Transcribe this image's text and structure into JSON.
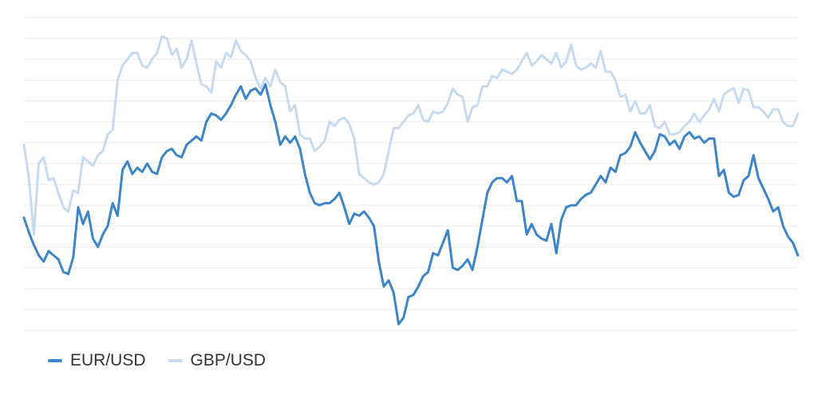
{
  "chart_data": {
    "type": "line",
    "title": "",
    "xlabel": "",
    "ylabel": "",
    "grid": true,
    "legend_position": "bottom-left",
    "ylim": [
      0,
      15
    ],
    "series": [
      {
        "name": "EUR/USD",
        "color": "#3d85c6",
        "values": [
          5.4,
          4.7,
          4.1,
          3.6,
          3.3,
          3.8,
          3.6,
          3.4,
          2.8,
          2.7,
          3.5,
          5.9,
          5.1,
          5.7,
          4.4,
          4.0,
          4.6,
          5.0,
          6.1,
          5.5,
          7.7,
          8.1,
          7.5,
          7.8,
          7.6,
          8.0,
          7.6,
          7.5,
          8.3,
          8.6,
          8.7,
          8.4,
          8.3,
          8.9,
          9.1,
          9.3,
          9.1,
          10.0,
          10.4,
          10.3,
          10.1,
          10.4,
          10.8,
          11.3,
          11.7,
          11.1,
          11.5,
          11.6,
          11.3,
          11.8,
          10.8,
          10.0,
          8.9,
          9.3,
          9.0,
          9.3,
          8.7,
          7.5,
          6.6,
          6.1,
          6.0,
          6.1,
          6.1,
          6.3,
          6.6,
          5.9,
          5.1,
          5.6,
          5.5,
          5.7,
          5.4,
          5.0,
          3.3,
          2.1,
          2.4,
          1.8,
          0.3,
          0.6,
          1.6,
          1.7,
          2.1,
          2.6,
          2.8,
          3.7,
          3.6,
          4.2,
          4.8,
          3.0,
          2.9,
          3.1,
          3.4,
          2.9,
          4.0,
          5.3,
          6.6,
          7.1,
          7.3,
          7.3,
          7.1,
          7.4,
          6.2,
          6.2,
          4.6,
          5.1,
          4.6,
          4.4,
          4.3,
          5.1,
          3.7,
          5.3,
          5.9,
          6.0,
          6.0,
          6.3,
          6.5,
          6.6,
          7.0,
          7.4,
          7.1,
          7.8,
          7.6,
          8.4,
          8.5,
          8.8,
          9.5,
          9.0,
          8.6,
          8.2,
          8.6,
          9.4,
          9.3,
          8.9,
          9.1,
          8.7,
          9.3,
          9.5,
          9.2,
          9.3,
          9.0,
          9.2,
          9.2,
          7.4,
          7.7,
          6.6,
          6.4,
          6.5,
          7.2,
          7.4,
          8.4,
          7.3,
          6.8,
          6.3,
          5.7,
          5.9,
          5.0,
          4.5,
          4.2,
          3.6
        ],
        "xlabel": ""
      },
      {
        "name": "GBP/USD",
        "color": "#c6dbef",
        "values": [
          8.9,
          7.3,
          4.6,
          8.0,
          8.3,
          7.2,
          7.3,
          6.6,
          5.9,
          5.7,
          6.7,
          6.6,
          8.3,
          8.1,
          7.9,
          8.4,
          8.6,
          9.4,
          9.6,
          12.0,
          12.7,
          13.0,
          13.3,
          13.3,
          12.7,
          12.6,
          13.0,
          13.3,
          14.1,
          14.0,
          13.2,
          13.5,
          12.6,
          13.0,
          13.9,
          12.8,
          11.8,
          11.7,
          11.4,
          12.9,
          12.6,
          13.3,
          13.1,
          13.9,
          13.4,
          13.2,
          12.9,
          12.1,
          11.6,
          12.1,
          11.7,
          12.5,
          11.9,
          11.7,
          10.5,
          10.8,
          9.4,
          9.2,
          9.2,
          8.6,
          8.8,
          9.1,
          10.0,
          9.8,
          10.1,
          10.2,
          9.9,
          9.2,
          7.5,
          7.3,
          7.1,
          7.0,
          7.1,
          7.5,
          8.6,
          9.7,
          9.7,
          10.0,
          10.3,
          10.4,
          10.8,
          10.1,
          10.0,
          10.5,
          10.4,
          10.5,
          10.9,
          11.6,
          11.3,
          11.2,
          10.0,
          10.7,
          10.8,
          11.7,
          11.7,
          12.2,
          12.1,
          12.5,
          12.4,
          12.3,
          12.5,
          12.9,
          13.3,
          12.7,
          12.9,
          13.2,
          13.0,
          12.8,
          13.3,
          12.6,
          12.9,
          13.7,
          12.7,
          12.5,
          12.6,
          12.8,
          12.6,
          13.4,
          12.4,
          12.4,
          12.0,
          11.2,
          11.3,
          10.5,
          11.0,
          10.4,
          10.4,
          10.8,
          9.8,
          9.7,
          10.0,
          9.4,
          9.4,
          9.5,
          9.8,
          10.0,
          10.4,
          10.0,
          10.3,
          10.6,
          11.1,
          10.5,
          11.3,
          11.5,
          11.6,
          10.9,
          11.6,
          11.5,
          10.7,
          10.7,
          10.5,
          10.2,
          10.6,
          10.6,
          10.0,
          9.8,
          9.8,
          10.4
        ]
      }
    ]
  }
}
